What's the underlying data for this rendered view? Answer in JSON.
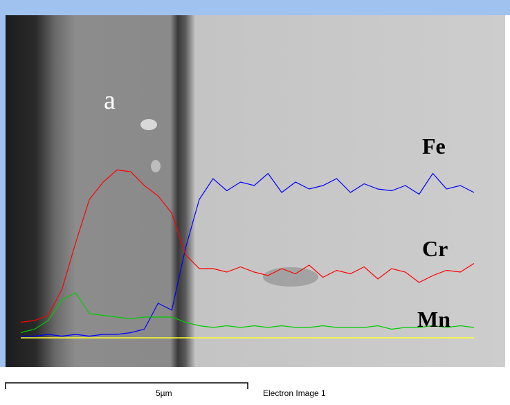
{
  "chart_data": {
    "type": "line",
    "label": "a",
    "x": [
      0,
      1,
      2,
      3,
      4,
      5,
      6,
      7,
      8,
      9,
      10,
      11,
      12,
      13,
      14,
      15,
      16,
      17,
      18,
      19,
      20,
      21,
      22,
      23,
      24,
      25,
      26,
      27,
      28,
      29,
      30,
      31,
      32,
      33
    ],
    "xlim": [
      0,
      33
    ],
    "ylim": [
      0,
      100
    ],
    "series": [
      {
        "name": "Fe",
        "color": "#0000ff",
        "values": [
          1,
          1,
          2,
          1,
          2,
          1,
          2,
          2,
          3,
          5,
          20,
          16,
          52,
          80,
          92,
          85,
          90,
          88,
          95,
          84,
          90,
          86,
          88,
          92,
          84,
          89,
          86,
          85,
          88,
          83,
          95,
          86,
          88,
          84
        ]
      },
      {
        "name": "Cr",
        "color": "#ff0000",
        "values": [
          9,
          10,
          13,
          28,
          55,
          80,
          90,
          97,
          96,
          88,
          82,
          72,
          48,
          40,
          40,
          38,
          41,
          38,
          36,
          40,
          37,
          42,
          35,
          39,
          37,
          41,
          34,
          40,
          38,
          32,
          36,
          39,
          38,
          43
        ]
      },
      {
        "name": "Mn",
        "color": "#00cc00",
        "values": [
          3,
          5,
          10,
          22,
          26,
          14,
          13,
          12,
          11,
          12,
          12,
          12,
          9,
          7,
          6,
          7,
          6,
          7,
          6,
          7,
          6,
          6,
          7,
          6,
          6,
          6,
          7,
          5,
          6,
          6,
          7,
          6,
          7,
          6
        ]
      }
    ],
    "scale_bar": "5µm",
    "caption": "Electron Image 1"
  }
}
